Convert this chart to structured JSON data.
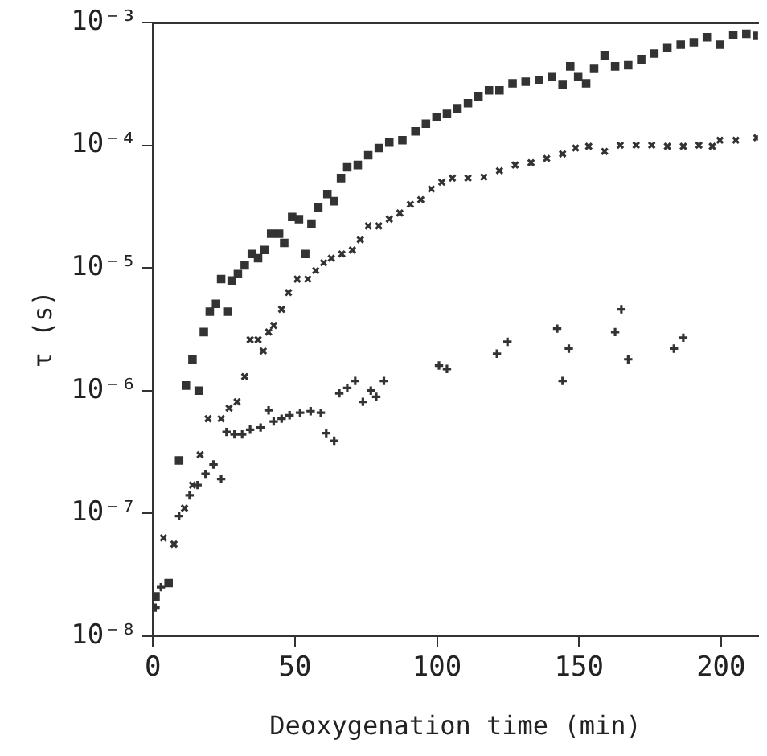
{
  "chart_data": {
    "type": "scatter",
    "xlabel": "Deoxygenation time (min)",
    "ylabel": "τ (s)",
    "log": "y",
    "grid": false,
    "legend": false,
    "xlim": [
      0,
      213
    ],
    "xticks": [
      0,
      50,
      100,
      150,
      200
    ],
    "ylim": [
      1e-08,
      0.001
    ],
    "yticks": [
      {
        "value": 1e-08,
        "label": "10⁻⁸"
      },
      {
        "value": 1e-07,
        "label": "10⁻⁷"
      },
      {
        "value": 1e-06,
        "label": "10⁻⁶"
      },
      {
        "value": 1e-05,
        "label": "10⁻⁵"
      },
      {
        "value": 0.0001,
        "label": "10⁻⁴"
      },
      {
        "value": 0.001,
        "label": "10⁻³"
      }
    ],
    "series": [
      {
        "color": "#333333",
        "marker": "square",
        "x": [
          0.9,
          5.5,
          9.2,
          11.6,
          13.9,
          16.1,
          17.9,
          20,
          22.2,
          26.2,
          24,
          27.7,
          29.9,
          32.3,
          34.8,
          37,
          39.2,
          41.6,
          44.4,
          46.2,
          49,
          51.4,
          53.6,
          55.8,
          58.2,
          61.4,
          63.8,
          66.2,
          68.4,
          72.1,
          75.8,
          79.5,
          83.2,
          87.8,
          92.4,
          96.1,
          99.8,
          103.5,
          107.2,
          110.9,
          114.6,
          118.3,
          122,
          126.6,
          131.2,
          135.9,
          140.5,
          144.2,
          146.9,
          149.7,
          152.5,
          155.3,
          159,
          162.7,
          167.3,
          171.9,
          176.5,
          181.1,
          185.8,
          190.4,
          195,
          199.6,
          204.3,
          208.9,
          212.6
        ],
        "values": [
          2.1e-08,
          2.7e-08,
          2.7e-07,
          1.1e-06,
          1.8e-06,
          1e-06,
          3e-06,
          4.4e-06,
          5.1e-06,
          4.4e-06,
          8.1e-06,
          7.9e-06,
          8.9e-06,
          1.05e-05,
          1.3e-05,
          1.2e-05,
          1.4e-05,
          1.9e-05,
          1.9e-05,
          1.6e-05,
          2.6e-05,
          2.5e-05,
          1.3e-05,
          2.3e-05,
          3.1e-05,
          4e-05,
          3.5e-05,
          5.4e-05,
          6.6e-05,
          6.9e-05,
          8.3e-05,
          9.5e-05,
          0.000105,
          0.00011,
          0.00013,
          0.00015,
          0.00017,
          0.00018,
          0.0002,
          0.00022,
          0.00025,
          0.00028,
          0.00028,
          0.00032,
          0.00033,
          0.00034,
          0.00036,
          0.00031,
          0.00044,
          0.00036,
          0.00032,
          0.00042,
          0.00054,
          0.00044,
          0.00045,
          0.0005,
          0.00056,
          0.00062,
          0.00066,
          0.00069,
          0.00076,
          0.00066,
          0.00079,
          0.00081,
          0.00078
        ]
      },
      {
        "color": "#333333",
        "marker": "x",
        "x": [
          3.7,
          7.4,
          11.1,
          13.9,
          16.6,
          19.4,
          24,
          26.8,
          29.6,
          32.3,
          34.2,
          37,
          38.8,
          40.7,
          42.5,
          45.3,
          47.7,
          50.8,
          54.5,
          57.3,
          60.1,
          62.8,
          66.5,
          70.2,
          73,
          75.8,
          79.5,
          83.2,
          86.9,
          90.6,
          94.3,
          98,
          101.7,
          105.4,
          110.9,
          116.5,
          122,
          127.5,
          133.1,
          138.6,
          144.2,
          148.8,
          153.4,
          159,
          164.5,
          170.1,
          175.6,
          181.1,
          186.7,
          192.2,
          196.9,
          199.6,
          205.2,
          212.6
        ],
        "values": [
          6.3e-08,
          5.6e-08,
          1.1e-07,
          1.7e-07,
          3e-07,
          5.9e-07,
          5.9e-07,
          7.2e-07,
          8.1e-07,
          1.3e-06,
          2.6e-06,
          2.6e-06,
          2.1e-06,
          3e-06,
          3.4e-06,
          4.6e-06,
          6.3e-06,
          8.1e-06,
          8.1e-06,
          9.5e-06,
          1.1e-05,
          1.2e-05,
          1.3e-05,
          1.4e-05,
          1.7e-05,
          2.2e-05,
          2.2e-05,
          2.5e-05,
          2.8e-05,
          3.3e-05,
          3.6e-05,
          4.4e-05,
          5e-05,
          5.4e-05,
          5.4e-05,
          5.5e-05,
          6.2e-05,
          6.9e-05,
          7.2e-05,
          7.8e-05,
          8.5e-05,
          9.5e-05,
          9.8e-05,
          8.9e-05,
          0.0001,
          0.0001,
          0.0001,
          9.8e-05,
          9.8e-05,
          0.0001,
          9.8e-05,
          0.00011,
          0.00011,
          0.000115
        ]
      },
      {
        "color": "#333333",
        "marker": "cross",
        "x": [
          0.9,
          2.8,
          5.5,
          9.2,
          12.9,
          15.7,
          18.5,
          21.3,
          24,
          25.9,
          28.7,
          31.4,
          34.2,
          37.9,
          40.7,
          42.5,
          45.3,
          48.1,
          51.8,
          55.5,
          59.1,
          61,
          63.8,
          65.6,
          68.4,
          71.2,
          73.9,
          76.7,
          78.6,
          81.3,
          100.7,
          103.5,
          121.1,
          124.8,
          142.3,
          144.2,
          146.4,
          162.7,
          164.9,
          167.3,
          183.4,
          186.7
        ],
        "values": [
          1.7e-08,
          2.5e-08,
          null,
          9.5e-08,
          1.4e-07,
          1.7e-07,
          2.1e-07,
          2.5e-07,
          1.9e-07,
          4.6e-07,
          4.4e-07,
          4.4e-07,
          4.8e-07,
          5e-07,
          6.9e-07,
          5.6e-07,
          5.9e-07,
          6.3e-07,
          6.6e-07,
          6.8e-07,
          6.6e-07,
          4.5e-07,
          3.9e-07,
          9.5e-07,
          1.05e-06,
          1.2e-06,
          8.1e-07,
          1e-06,
          8.9e-07,
          1.2e-06,
          1.6e-06,
          1.5e-06,
          2e-06,
          2.5e-06,
          3.2e-06,
          1.2e-06,
          2.2e-06,
          3e-06,
          4.6e-06,
          1.8e-06,
          2.2e-06,
          2.7e-06
        ]
      }
    ]
  }
}
